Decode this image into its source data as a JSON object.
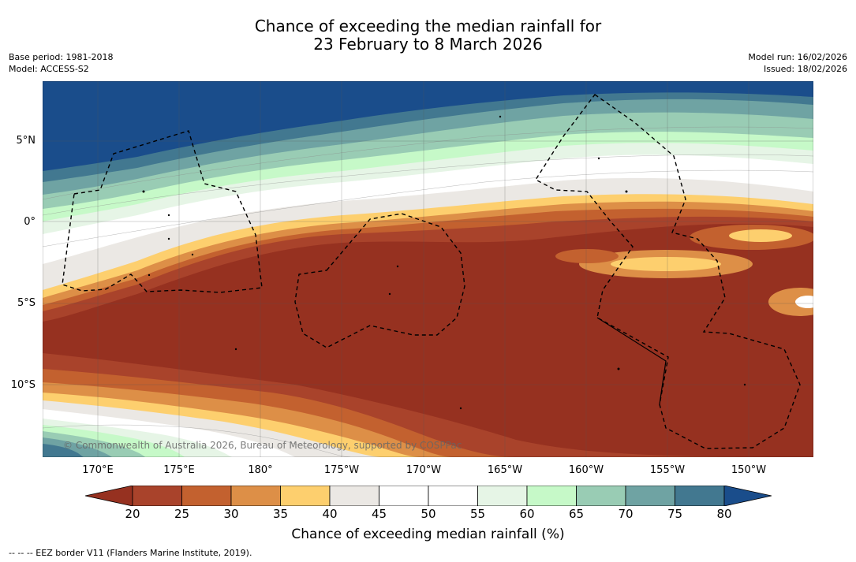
{
  "title": {
    "line1": "Chance of exceeding the median rainfall for",
    "line2": "23 February to 8 March 2026"
  },
  "meta": {
    "base_period": "Base period: 1981-2018",
    "model": "Model: ACCESS-S2",
    "model_run": "Model run: 16/02/2026",
    "issued": "Issued: 18/02/2026"
  },
  "map": {
    "lat_labels": [
      "5°N",
      "0°",
      "5°S",
      "10°S"
    ],
    "lon_labels": [
      "170°E",
      "175°E",
      "180°",
      "175°W",
      "170°W",
      "165°W",
      "160°W",
      "155°W",
      "150°W"
    ],
    "credit": "© Commonwealth of Australia 2026, Bureau of Meteorology, supported by COSPPac"
  },
  "colorbar": {
    "ticks": [
      "20",
      "25",
      "30",
      "35",
      "40",
      "45",
      "50",
      "55",
      "60",
      "65",
      "70",
      "75",
      "80"
    ],
    "colors": [
      "#963120",
      "#a9432b",
      "#c3612f",
      "#dd8f47",
      "#fdcf6e",
      "#ebe8e4",
      "#ffffff",
      "#ffffff",
      "#e6f5e6",
      "#c6f9c8",
      "#99ccb4",
      "#6fa3a3",
      "#427890"
    ],
    "under_color": "#963120",
    "over_color": "#1a4d8b",
    "label": "Chance of exceeding median rainfall (%)"
  },
  "footnote": "--  --  -- EEZ border V11 (Flanders Marine Institute, 2019)."
}
